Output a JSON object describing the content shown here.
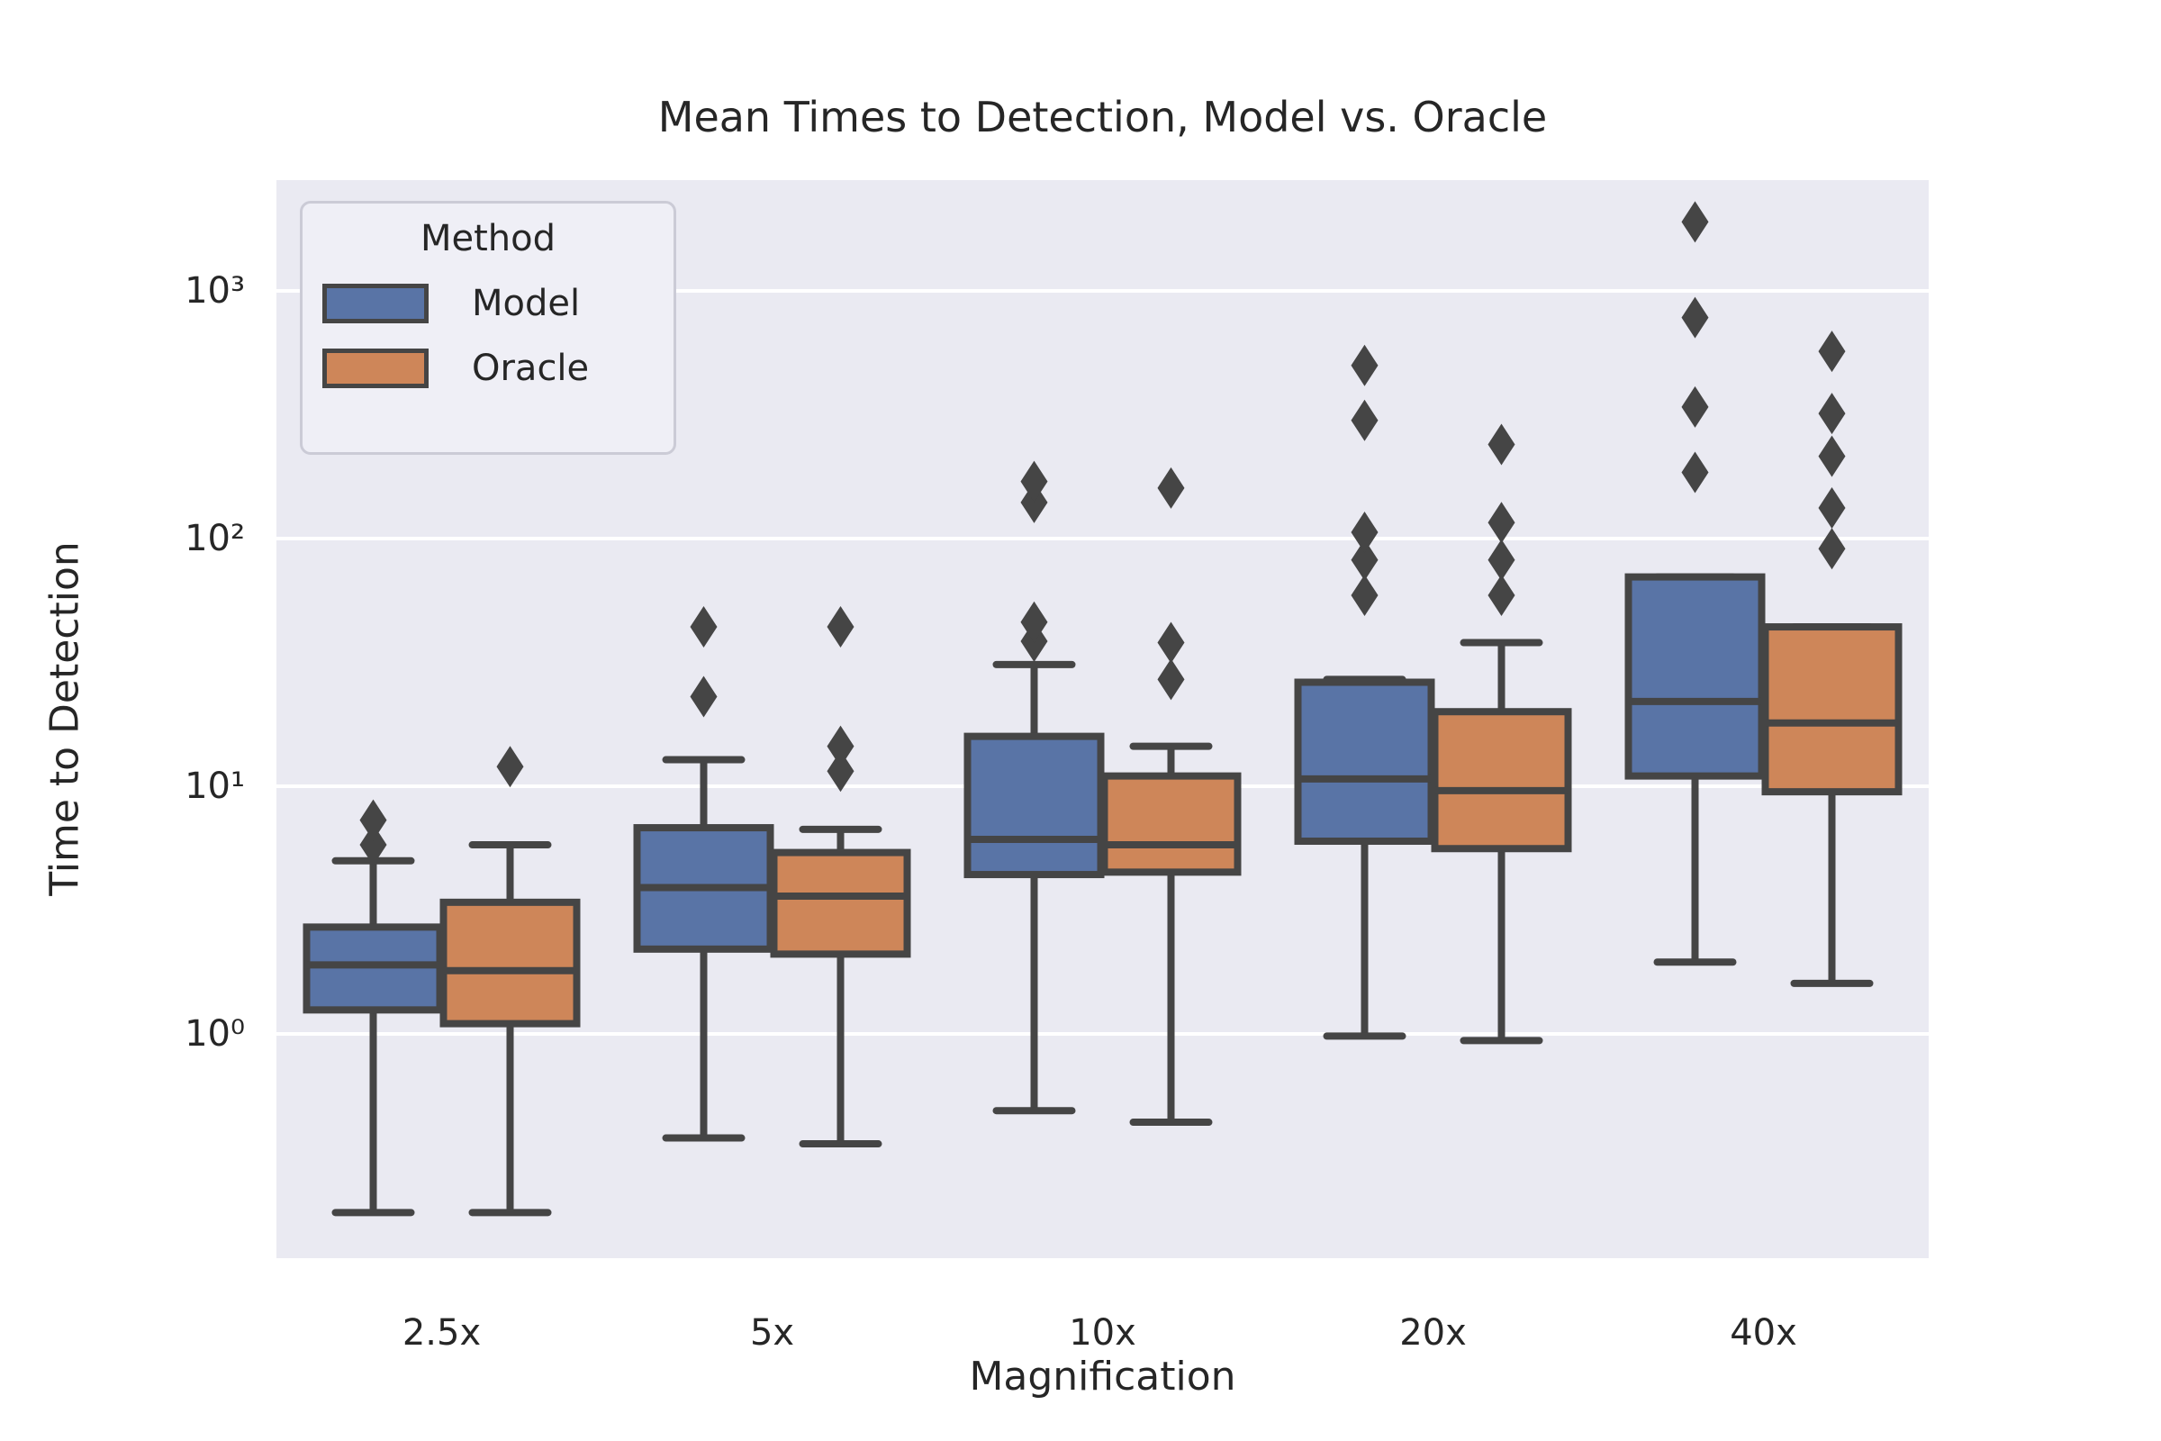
{
  "chart_data": {
    "type": "boxplot",
    "title": "Mean Times to Detection, Model vs. Oracle",
    "xlabel": "Magnification",
    "ylabel": "Time to Detection",
    "x_categories": [
      "2.5x",
      "5x",
      "10x",
      "20x",
      "40x"
    ],
    "y_scale": "log",
    "y_range": [
      0.125,
      2900
    ],
    "grid": "horizontal-white",
    "y_ticks": [
      {
        "label": "10⁰",
        "value": 1
      },
      {
        "label": "10¹",
        "value": 10
      },
      {
        "label": "10²",
        "value": 100
      },
      {
        "label": "10³",
        "value": 1000
      }
    ],
    "colors": {
      "model_fill": "#5974A6",
      "oracle_fill": "#CE8659",
      "line": "#454545",
      "plot_background": "#EAEAF2",
      "gridline": "#FFFFFF"
    },
    "legend": {
      "title": "Method",
      "position": "upper left",
      "entries": [
        {
          "label": "Model",
          "color": "#5974A6"
        },
        {
          "label": "Oracle",
          "color": "#CE8659"
        }
      ]
    },
    "series": [
      {
        "name": "Model",
        "color": "#5974A6",
        "boxes": [
          {
            "category": "2.5x",
            "whisker_low": 0.19,
            "q1": 1.25,
            "median": 1.9,
            "q3": 2.7,
            "whisker_high": 5.0,
            "outliers": [
              5.8,
              7.3
            ]
          },
          {
            "category": "5x",
            "whisker_low": 0.38,
            "q1": 2.2,
            "median": 3.9,
            "q3": 6.8,
            "whisker_high": 12.8,
            "outliers": [
              23,
              44
            ]
          },
          {
            "category": "10x",
            "whisker_low": 0.49,
            "q1": 4.4,
            "median": 6.1,
            "q3": 15.9,
            "whisker_high": 31,
            "outliers": [
              38.5,
              46,
              140,
              170
            ]
          },
          {
            "category": "20x",
            "whisker_low": 0.98,
            "q1": 6.0,
            "median": 10.7,
            "q3": 26.3,
            "whisker_high": 27,
            "outliers": [
              59,
              82,
              106,
              300,
              500
            ]
          },
          {
            "category": "40x",
            "whisker_low": 1.95,
            "q1": 11,
            "median": 22,
            "q3": 70,
            "whisker_high": 70,
            "outliers": [
              185,
              340,
              780,
              1900
            ]
          }
        ]
      },
      {
        "name": "Oracle",
        "color": "#CE8659",
        "boxes": [
          {
            "category": "2.5x",
            "whisker_low": 0.19,
            "q1": 1.1,
            "median": 1.8,
            "q3": 3.4,
            "whisker_high": 5.8,
            "outliers": [
              12
            ]
          },
          {
            "category": "5x",
            "whisker_low": 0.36,
            "q1": 2.1,
            "median": 3.6,
            "q3": 5.4,
            "whisker_high": 6.7,
            "outliers": [
              11.5,
              14.5,
              44
            ]
          },
          {
            "category": "10x",
            "whisker_low": 0.44,
            "q1": 4.5,
            "median": 5.8,
            "q3": 11,
            "whisker_high": 14.5,
            "outliers": [
              27,
              38,
              160
            ]
          },
          {
            "category": "20x",
            "whisker_low": 0.94,
            "q1": 5.6,
            "median": 9.6,
            "q3": 20,
            "whisker_high": 38,
            "outliers": [
              59,
              82,
              116,
              240
            ]
          },
          {
            "category": "40x",
            "whisker_low": 1.6,
            "q1": 9.5,
            "median": 18,
            "q3": 44,
            "whisker_high": 44,
            "outliers": [
              91,
              133,
              215,
              320,
              570
            ]
          }
        ]
      }
    ]
  }
}
